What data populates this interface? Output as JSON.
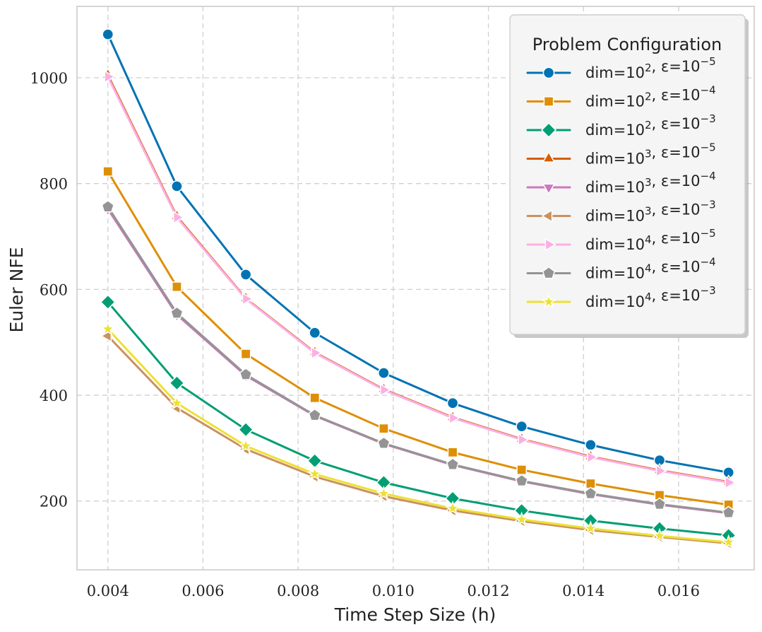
{
  "chart_data": {
    "type": "line",
    "xlabel": "Time Step Size (h)",
    "ylabel": "Euler NFE",
    "xlim": [
      0.00335,
      0.01759
    ],
    "ylim": [
      70,
      1135
    ],
    "grid": true,
    "x_ticks": [
      0.004,
      0.006,
      0.008,
      0.01,
      0.012,
      0.014,
      0.016
    ],
    "x_tick_labels": [
      "0.004",
      "0.006",
      "0.008",
      "0.010",
      "0.012",
      "0.014",
      "0.016"
    ],
    "y_ticks": [
      200,
      400,
      600,
      800,
      1000
    ],
    "y_tick_labels": [
      "200",
      "400",
      "600",
      "800",
      "1000"
    ],
    "x": [
      0.004,
      0.00545,
      0.0069,
      0.00835,
      0.0098,
      0.01125,
      0.0127,
      0.01415,
      0.0156,
      0.01705
    ],
    "legend": {
      "title": "Problem Configuration",
      "placement": "top-right"
    },
    "series": [
      {
        "name": "dim=10^2, ε=10^-5",
        "dim_base": "dim=10",
        "dim_exp": "2",
        "eps_base": "ε=10",
        "eps_exp": "−5",
        "color": "#0173b2",
        "marker": "circle",
        "values": [
          1082,
          795,
          628,
          518,
          442,
          385,
          341,
          306,
          277,
          254
        ]
      },
      {
        "name": "dim=10^2, ε=10^-4",
        "dim_base": "dim=10",
        "dim_exp": "2",
        "eps_base": "ε=10",
        "eps_exp": "−4",
        "color": "#de8f05",
        "marker": "square",
        "values": [
          823,
          605,
          478,
          395,
          337,
          292,
          259,
          233,
          211,
          193
        ]
      },
      {
        "name": "dim=10^2, ε=10^-3",
        "dim_base": "dim=10",
        "dim_exp": "2",
        "eps_base": "ε=10",
        "eps_exp": "−3",
        "color": "#029e73",
        "marker": "diamond",
        "values": [
          576,
          423,
          335,
          276,
          235,
          205,
          182,
          163,
          148,
          135
        ]
      },
      {
        "name": "dim=10^3, ε=10^-5",
        "dim_base": "dim=10",
        "dim_exp": "3",
        "eps_base": "ε=10",
        "eps_exp": "−5",
        "color": "#d55e00",
        "marker": "triangle-up",
        "values": [
          1005,
          738,
          583,
          481,
          411,
          358,
          317,
          284,
          258,
          236
        ]
      },
      {
        "name": "dim=10^3, ε=10^-4",
        "dim_base": "dim=10",
        "dim_exp": "3",
        "eps_base": "ε=10",
        "eps_exp": "−4",
        "color": "#cc78bc",
        "marker": "triangle-down",
        "values": [
          752,
          552,
          437,
          361,
          308,
          268,
          237,
          213,
          193,
          177
        ]
      },
      {
        "name": "dim=10^3, ε=10^-3",
        "dim_base": "dim=10",
        "dim_exp": "3",
        "eps_base": "ε=10",
        "eps_exp": "−3",
        "color": "#ca9161",
        "marker": "triangle-left",
        "values": [
          512,
          376,
          298,
          246,
          209,
          182,
          162,
          145,
          132,
          120
        ]
      },
      {
        "name": "dim=10^4, ε=10^-5",
        "dim_base": "dim=10",
        "dim_exp": "4",
        "eps_base": "ε=10",
        "eps_exp": "−5",
        "color": "#fbafe4",
        "marker": "triangle-right",
        "values": [
          1002,
          736,
          582,
          480,
          410,
          357,
          316,
          283,
          257,
          235
        ]
      },
      {
        "name": "dim=10^4, ε=10^-4",
        "dim_base": "dim=10",
        "dim_exp": "4",
        "eps_base": "ε=10",
        "eps_exp": "−4",
        "color": "#949494",
        "marker": "pentagon",
        "values": [
          756,
          555,
          439,
          362,
          309,
          269,
          238,
          214,
          194,
          178
        ]
      },
      {
        "name": "dim=10^4, ε=10^-3",
        "dim_base": "dim=10",
        "dim_exp": "4",
        "eps_base": "ε=10",
        "eps_exp": "−3",
        "color": "#ece133",
        "marker": "star",
        "values": [
          525,
          385,
          304,
          251,
          214,
          186,
          165,
          148,
          134,
          122
        ]
      }
    ]
  }
}
